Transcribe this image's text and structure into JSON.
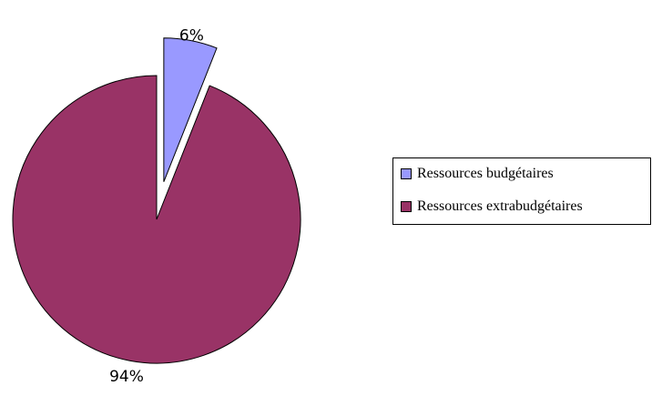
{
  "chart_data": {
    "type": "pie",
    "title": "",
    "labels": [
      "Ressources budgétaires",
      "Ressources extrabudgétaires"
    ],
    "values": [
      6,
      94
    ],
    "data_labels": [
      "6%",
      "94%"
    ],
    "colors": [
      "#9999ff",
      "#993366"
    ],
    "exploded": [
      true,
      false
    ],
    "legend": {
      "position": "right",
      "entries": [
        "Ressources budgétaires",
        "Ressources extrabudgétaires"
      ]
    }
  }
}
